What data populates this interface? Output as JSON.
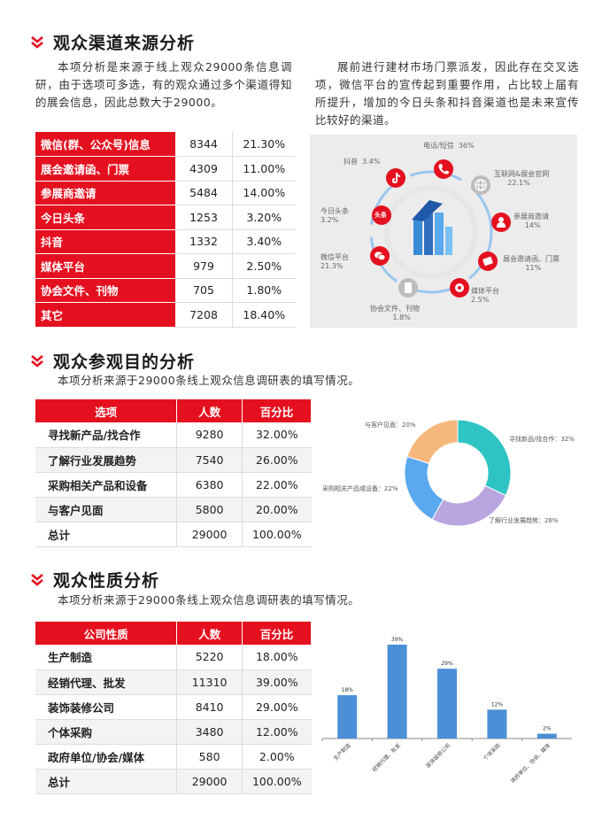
{
  "colors": {
    "accent": "#e5101f",
    "pie_teal": "#2ec4c4",
    "pie_purple": "#b9a5e0",
    "pie_blue": "#5aa8ee",
    "pie_orange": "#f6b77c",
    "bar_blue": "#4b8fd6"
  },
  "section1": {
    "title": "观众渠道来源分析",
    "para_left": "本项分析是来源于线上观众29000条信息调研，由于选项可多选，有的观众通过多个渠道得知的展会信息，因此总数大于29000。",
    "para_right": "展前进行建材市场门票派发，因此存在交叉选项，微信平台的宣传起到重要作用，占比较上届有所提升，增加的今日头条和抖音渠道也是未来宣传比较好的渠道。",
    "table": [
      {
        "cat": "微信(群、公众号)信息",
        "num": "8344",
        "pct": "21.30%"
      },
      {
        "cat": "展会邀请函、门票",
        "num": "4309",
        "pct": "11.00%"
      },
      {
        "cat": "参展商邀请",
        "num": "5484",
        "pct": "14.00%"
      },
      {
        "cat": "今日头条",
        "num": "1253",
        "pct": "3.20%"
      },
      {
        "cat": "抖音",
        "num": "1332",
        "pct": "3.40%"
      },
      {
        "cat": "媒体平台",
        "num": "979",
        "pct": "2.50%"
      },
      {
        "cat": "协会文件、刊物",
        "num": "705",
        "pct": "1.80%"
      },
      {
        "cat": "其它",
        "num": "7208",
        "pct": "18.40%"
      }
    ],
    "infographic": [
      {
        "name": "电话/短信",
        "pct": "36%",
        "icon": "phone-icon",
        "color": "#e5101f"
      },
      {
        "name": "互联网&展会官网",
        "pct": "22.1%",
        "icon": "globe-icon",
        "color": "#9a9a9a"
      },
      {
        "name": "参展商邀请",
        "pct": "14%",
        "icon": "person-icon",
        "color": "#e5101f"
      },
      {
        "name": "展会邀请函、门票",
        "pct": "11%",
        "icon": "ticket-icon",
        "color": "#e5101f"
      },
      {
        "name": "媒体平台",
        "pct": "2.5%",
        "icon": "media-icon",
        "color": "#e5101f"
      },
      {
        "name": "协会文件、刊物",
        "pct": "1.8%",
        "icon": "document-icon",
        "color": "#9a9a9a"
      },
      {
        "name": "微信平台",
        "pct": "21.3%",
        "icon": "wechat-icon",
        "color": "#e5101f"
      },
      {
        "name": "今日头条",
        "pct": "3.2%",
        "icon": "toutiao-icon",
        "color": "#e5101f"
      },
      {
        "name": "抖音",
        "pct": "3.4%",
        "icon": "tiktok-icon",
        "color": "#e5101f"
      }
    ],
    "toutiao_badge": "头条"
  },
  "section2": {
    "title": "观众参观目的分析",
    "para": "本项分析来源于29000条线上观众信息调研表的填写情况。",
    "headers": [
      "选项",
      "人数",
      "百分比"
    ],
    "rows": [
      {
        "label": "寻找新产品/找合作",
        "num": "9280",
        "pct": "32.00%"
      },
      {
        "label": "了解行业发展趋势",
        "num": "7540",
        "pct": "26.00%"
      },
      {
        "label": "采购相关产品和设备",
        "num": "6380",
        "pct": "22.00%"
      },
      {
        "label": "与客户见面",
        "num": "5800",
        "pct": "20.00%"
      },
      {
        "label": "总计",
        "num": "29000",
        "pct": "100.00%"
      }
    ]
  },
  "section3": {
    "title": "观众性质分析",
    "para": "本项分析来源于29000条线上观众信息调研表的填写情况。",
    "headers": [
      "公司性质",
      "人数",
      "百分比"
    ],
    "rows": [
      {
        "label": "生产制造",
        "num": "5220",
        "pct": "18.00%"
      },
      {
        "label": "经销代理、批发",
        "num": "11310",
        "pct": "39.00%"
      },
      {
        "label": "装饰装修公司",
        "num": "8410",
        "pct": "29.00%"
      },
      {
        "label": "个体采购",
        "num": "3480",
        "pct": "12.00%"
      },
      {
        "label": "政府单位/协会/媒体",
        "num": "580",
        "pct": "2.00%"
      },
      {
        "label": "总计",
        "num": "29000",
        "pct": "100.00%"
      }
    ]
  },
  "chart_data": [
    {
      "type": "pie",
      "subtype": "donut",
      "categories": [
        "寻找新品/找合作",
        "了解行业发展趋势",
        "采购相关产品或设备",
        "与客户见面"
      ],
      "values": [
        32,
        26,
        22,
        20
      ],
      "labels": [
        "寻找新品/找合作：32%",
        "了解行业发展趋势：26%",
        "采购相关产品或设备：22%",
        "与客户见面：20%"
      ],
      "colors": [
        "#2ec4c4",
        "#b9a5e0",
        "#5aa8ee",
        "#f6b77c"
      ]
    },
    {
      "type": "bar",
      "categories": [
        "生产制造",
        "经销代理、批发",
        "装饰装修公司",
        "个体采购",
        "政府单位、协会、媒体"
      ],
      "values": [
        18,
        39,
        29,
        12,
        2
      ],
      "data_labels": [
        "18%",
        "39%",
        "29%",
        "12%",
        "2%"
      ],
      "ylim": [
        0,
        39
      ],
      "color": "#4b8fd6"
    }
  ]
}
